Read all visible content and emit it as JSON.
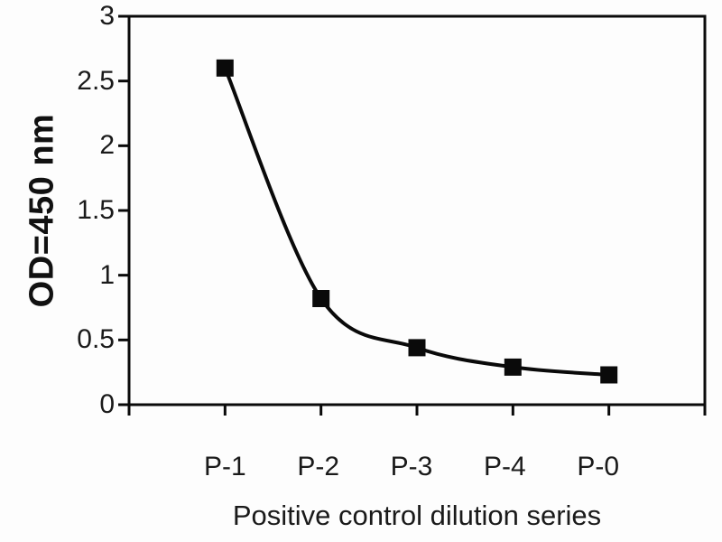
{
  "chart_data": {
    "type": "line",
    "title": "",
    "categories": [
      "P-1",
      "P-2",
      "P-3",
      "P-4",
      "P-0"
    ],
    "values": [
      2.6,
      0.82,
      0.44,
      0.29,
      0.23
    ],
    "series_name": "Positive control dilution series",
    "xlabel": "Positive control dilution series",
    "ylabel": "OD=450 nm",
    "ylim": [
      0,
      3
    ],
    "yticks": [
      0,
      0.5,
      1,
      1.5,
      2,
      2.5,
      3
    ],
    "ytick_labels": [
      "0",
      "0.5",
      "1",
      "1.5",
      "2",
      "2.5",
      "3"
    ],
    "grid": false,
    "legend": false,
    "plot_frame": true,
    "smooth": true,
    "marker": "square",
    "marker_size_px": 19,
    "line_color": "#0a0a0a",
    "marker_color": "#0a0a0a",
    "axis_color": "#0a0a0a",
    "background_color": "#fdfdfd"
  }
}
